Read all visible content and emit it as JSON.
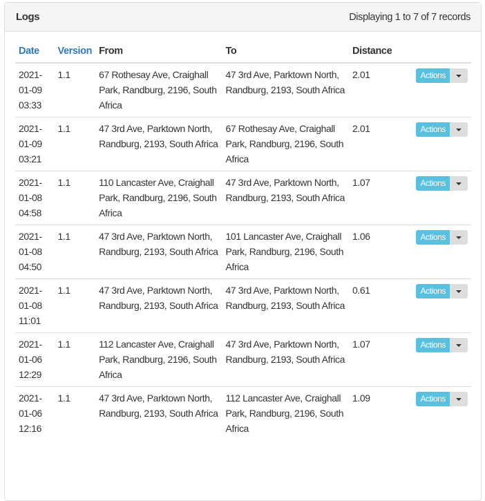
{
  "panel": {
    "title": "Logs",
    "info": "Displaying 1 to 7 of 7 records"
  },
  "columns": [
    "Date",
    "Version",
    "From",
    "To",
    "Distance"
  ],
  "action_label": "Actions",
  "rows": [
    {
      "date": "2021-01-09 03:33",
      "version": "1.1",
      "from": "67 Rothesay Ave, Craighall Park, Randburg, 2196, South Africa",
      "to": "47 3rd Ave, Parktown North, Randburg, 2193, South Africa",
      "distance": "2.01"
    },
    {
      "date": "2021-01-09 03:21",
      "version": "1.1",
      "from": "47 3rd Ave, Parktown North, Randburg, 2193, South Africa",
      "to": "67 Rothesay Ave, Craighall Park, Randburg, 2196, South Africa",
      "distance": "2.01"
    },
    {
      "date": "2021-01-08 04:58",
      "version": "1.1",
      "from": "110 Lancaster Ave, Craighall Park, Randburg, 2196, South Africa",
      "to": "47 3rd Ave, Parktown North, Randburg, 2193, South Africa",
      "distance": "1.07"
    },
    {
      "date": "2021-01-08 04:50",
      "version": "1.1",
      "from": "47 3rd Ave, Parktown North, Randburg, 2193, South Africa",
      "to": "101 Lancaster Ave, Craighall Park, Randburg, 2196, South Africa",
      "distance": "1.06"
    },
    {
      "date": "2021-01-08 11:01",
      "version": "1.1",
      "from": "47 3rd Ave, Parktown North, Randburg, 2193, South Africa",
      "to": "47 3rd Ave, Parktown North, Randburg, 2193, South Africa",
      "distance": "0.61"
    },
    {
      "date": "2021-01-06 12:29",
      "version": "1.1",
      "from": "112 Lancaster Ave, Craighall Park, Randburg, 2196, South Africa",
      "to": "47 3rd Ave, Parktown North, Randburg, 2193, South Africa",
      "distance": "1.07"
    },
    {
      "date": "2021-01-06 12:16",
      "version": "1.1",
      "from": "47 3rd Ave, Parktown North, Randburg, 2193, South Africa",
      "to": "112 Lancaster Ave, Craighall Park, Randburg, 2196, South Africa",
      "distance": "1.09"
    }
  ]
}
